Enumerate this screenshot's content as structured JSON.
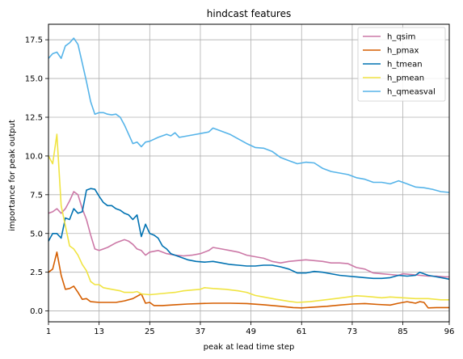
{
  "chart_data": {
    "type": "line",
    "title": "hindcast features",
    "xlabel": "peak at lead time step",
    "ylabel": "importance for peak output",
    "xlim": [
      1,
      96
    ],
    "ylim": [
      -0.7,
      18.5
    ],
    "xticks": [
      1,
      13,
      25,
      37,
      49,
      61,
      73,
      85,
      96
    ],
    "yticks": [
      0.0,
      2.5,
      5.0,
      7.5,
      10.0,
      12.5,
      15.0,
      17.5
    ],
    "ytick_labels": [
      "0.0",
      "2.5",
      "5.0",
      "7.5",
      "10.0",
      "12.5",
      "15.0",
      "17.5"
    ],
    "grid": true,
    "legend_position": "top-right",
    "series": [
      {
        "name": "h_qsim",
        "color": "#cc79a7",
        "points": [
          [
            1,
            6.3
          ],
          [
            2,
            6.4
          ],
          [
            3,
            6.6
          ],
          [
            4,
            6.3
          ],
          [
            5,
            6.6
          ],
          [
            6,
            7.1
          ],
          [
            7,
            7.7
          ],
          [
            8,
            7.5
          ],
          [
            9,
            6.6
          ],
          [
            10,
            5.9
          ],
          [
            11,
            4.9
          ],
          [
            12,
            4.0
          ],
          [
            13,
            3.9
          ],
          [
            15,
            4.1
          ],
          [
            17,
            4.4
          ],
          [
            19,
            4.6
          ],
          [
            20,
            4.5
          ],
          [
            21,
            4.3
          ],
          [
            22,
            4.0
          ],
          [
            23,
            3.9
          ],
          [
            24,
            3.6
          ],
          [
            25,
            3.8
          ],
          [
            27,
            3.9
          ],
          [
            29,
            3.7
          ],
          [
            31,
            3.6
          ],
          [
            33,
            3.55
          ],
          [
            35,
            3.6
          ],
          [
            37,
            3.7
          ],
          [
            39,
            3.9
          ],
          [
            40,
            4.1
          ],
          [
            42,
            4.0
          ],
          [
            44,
            3.9
          ],
          [
            46,
            3.8
          ],
          [
            48,
            3.6
          ],
          [
            50,
            3.5
          ],
          [
            52,
            3.4
          ],
          [
            54,
            3.2
          ],
          [
            56,
            3.1
          ],
          [
            58,
            3.2
          ],
          [
            60,
            3.25
          ],
          [
            62,
            3.3
          ],
          [
            64,
            3.25
          ],
          [
            66,
            3.2
          ],
          [
            68,
            3.1
          ],
          [
            70,
            3.1
          ],
          [
            72,
            3.05
          ],
          [
            74,
            2.8
          ],
          [
            76,
            2.7
          ],
          [
            78,
            2.45
          ],
          [
            80,
            2.4
          ],
          [
            82,
            2.35
          ],
          [
            84,
            2.3
          ],
          [
            85,
            2.4
          ],
          [
            87,
            2.35
          ],
          [
            89,
            2.3
          ],
          [
            91,
            2.25
          ],
          [
            93,
            2.25
          ],
          [
            95,
            2.2
          ],
          [
            96,
            2.2
          ]
        ]
      },
      {
        "name": "h_pmax",
        "color": "#d55e00",
        "points": [
          [
            1,
            2.5
          ],
          [
            2,
            2.7
          ],
          [
            3,
            3.8
          ],
          [
            4,
            2.3
          ],
          [
            5,
            1.4
          ],
          [
            6,
            1.45
          ],
          [
            7,
            1.6
          ],
          [
            8,
            1.2
          ],
          [
            9,
            0.75
          ],
          [
            10,
            0.8
          ],
          [
            11,
            0.6
          ],
          [
            13,
            0.55
          ],
          [
            15,
            0.55
          ],
          [
            17,
            0.55
          ],
          [
            19,
            0.65
          ],
          [
            21,
            0.8
          ],
          [
            22,
            0.95
          ],
          [
            23,
            1.1
          ],
          [
            24,
            0.5
          ],
          [
            25,
            0.55
          ],
          [
            26,
            0.35
          ],
          [
            28,
            0.35
          ],
          [
            31,
            0.4
          ],
          [
            34,
            0.45
          ],
          [
            37,
            0.48
          ],
          [
            40,
            0.5
          ],
          [
            44,
            0.5
          ],
          [
            48,
            0.48
          ],
          [
            52,
            0.4
          ],
          [
            56,
            0.3
          ],
          [
            59,
            0.22
          ],
          [
            61,
            0.2
          ],
          [
            64,
            0.25
          ],
          [
            67,
            0.3
          ],
          [
            70,
            0.38
          ],
          [
            73,
            0.45
          ],
          [
            76,
            0.48
          ],
          [
            79,
            0.42
          ],
          [
            82,
            0.38
          ],
          [
            84,
            0.5
          ],
          [
            86,
            0.6
          ],
          [
            88,
            0.5
          ],
          [
            89,
            0.6
          ],
          [
            90,
            0.55
          ],
          [
            91,
            0.2
          ],
          [
            93,
            0.22
          ],
          [
            96,
            0.22
          ]
        ]
      },
      {
        "name": "h_tmean",
        "color": "#0072b2",
        "points": [
          [
            1,
            4.5
          ],
          [
            2,
            5.0
          ],
          [
            3,
            5.0
          ],
          [
            4,
            4.7
          ],
          [
            5,
            6.0
          ],
          [
            6,
            5.9
          ],
          [
            7,
            6.6
          ],
          [
            8,
            6.3
          ],
          [
            9,
            6.4
          ],
          [
            10,
            7.8
          ],
          [
            11,
            7.9
          ],
          [
            12,
            7.85
          ],
          [
            13,
            7.4
          ],
          [
            14,
            7.0
          ],
          [
            15,
            6.8
          ],
          [
            16,
            6.8
          ],
          [
            17,
            6.6
          ],
          [
            18,
            6.5
          ],
          [
            19,
            6.3
          ],
          [
            20,
            6.2
          ],
          [
            21,
            5.9
          ],
          [
            22,
            6.2
          ],
          [
            23,
            4.8
          ],
          [
            24,
            5.6
          ],
          [
            25,
            5.0
          ],
          [
            26,
            4.9
          ],
          [
            27,
            4.7
          ],
          [
            28,
            4.2
          ],
          [
            29,
            4.0
          ],
          [
            30,
            3.7
          ],
          [
            32,
            3.5
          ],
          [
            34,
            3.3
          ],
          [
            36,
            3.2
          ],
          [
            38,
            3.15
          ],
          [
            40,
            3.2
          ],
          [
            42,
            3.1
          ],
          [
            44,
            3.0
          ],
          [
            46,
            2.95
          ],
          [
            48,
            2.9
          ],
          [
            50,
            2.9
          ],
          [
            52,
            2.95
          ],
          [
            54,
            2.95
          ],
          [
            56,
            2.85
          ],
          [
            58,
            2.7
          ],
          [
            60,
            2.45
          ],
          [
            62,
            2.45
          ],
          [
            64,
            2.55
          ],
          [
            66,
            2.5
          ],
          [
            68,
            2.4
          ],
          [
            70,
            2.3
          ],
          [
            72,
            2.25
          ],
          [
            74,
            2.2
          ],
          [
            76,
            2.15
          ],
          [
            78,
            2.1
          ],
          [
            80,
            2.1
          ],
          [
            82,
            2.15
          ],
          [
            84,
            2.3
          ],
          [
            86,
            2.25
          ],
          [
            88,
            2.3
          ],
          [
            89,
            2.5
          ],
          [
            91,
            2.3
          ],
          [
            93,
            2.2
          ],
          [
            95,
            2.1
          ],
          [
            96,
            2.05
          ]
        ]
      },
      {
        "name": "h_pmean",
        "color": "#f0e442",
        "points": [
          [
            1,
            10.0
          ],
          [
            2,
            9.5
          ],
          [
            3,
            11.4
          ],
          [
            4,
            6.8
          ],
          [
            5,
            5.5
          ],
          [
            6,
            4.2
          ],
          [
            7,
            4.0
          ],
          [
            8,
            3.6
          ],
          [
            9,
            3.0
          ],
          [
            10,
            2.6
          ],
          [
            11,
            1.9
          ],
          [
            12,
            1.7
          ],
          [
            13,
            1.7
          ],
          [
            14,
            1.5
          ],
          [
            16,
            1.4
          ],
          [
            18,
            1.3
          ],
          [
            19,
            1.2
          ],
          [
            21,
            1.2
          ],
          [
            22,
            1.25
          ],
          [
            23,
            1.1
          ],
          [
            25,
            1.05
          ],
          [
            27,
            1.1
          ],
          [
            29,
            1.15
          ],
          [
            31,
            1.2
          ],
          [
            33,
            1.3
          ],
          [
            35,
            1.35
          ],
          [
            37,
            1.4
          ],
          [
            38,
            1.5
          ],
          [
            40,
            1.45
          ],
          [
            43,
            1.4
          ],
          [
            46,
            1.3
          ],
          [
            48,
            1.2
          ],
          [
            50,
            1.0
          ],
          [
            52,
            0.9
          ],
          [
            55,
            0.75
          ],
          [
            58,
            0.62
          ],
          [
            60,
            0.55
          ],
          [
            63,
            0.6
          ],
          [
            66,
            0.7
          ],
          [
            69,
            0.8
          ],
          [
            72,
            0.9
          ],
          [
            74,
            0.98
          ],
          [
            76,
            0.95
          ],
          [
            78,
            0.9
          ],
          [
            80,
            0.85
          ],
          [
            82,
            0.9
          ],
          [
            85,
            0.85
          ],
          [
            88,
            0.8
          ],
          [
            91,
            0.8
          ],
          [
            94,
            0.72
          ],
          [
            96,
            0.72
          ]
        ]
      },
      {
        "name": "h_qmeasval",
        "color": "#56b4e9",
        "points": [
          [
            1,
            16.3
          ],
          [
            2,
            16.6
          ],
          [
            3,
            16.7
          ],
          [
            4,
            16.3
          ],
          [
            5,
            17.1
          ],
          [
            6,
            17.3
          ],
          [
            7,
            17.6
          ],
          [
            8,
            17.2
          ],
          [
            9,
            16.0
          ],
          [
            10,
            14.8
          ],
          [
            11,
            13.5
          ],
          [
            12,
            12.7
          ],
          [
            13,
            12.8
          ],
          [
            14,
            12.8
          ],
          [
            15,
            12.7
          ],
          [
            16,
            12.65
          ],
          [
            17,
            12.7
          ],
          [
            18,
            12.5
          ],
          [
            19,
            12.0
          ],
          [
            20,
            11.4
          ],
          [
            21,
            10.8
          ],
          [
            22,
            10.9
          ],
          [
            23,
            10.6
          ],
          [
            24,
            10.9
          ],
          [
            25,
            10.95
          ],
          [
            27,
            11.2
          ],
          [
            29,
            11.4
          ],
          [
            30,
            11.3
          ],
          [
            31,
            11.5
          ],
          [
            32,
            11.2
          ],
          [
            34,
            11.3
          ],
          [
            36,
            11.4
          ],
          [
            38,
            11.5
          ],
          [
            39,
            11.55
          ],
          [
            40,
            11.8
          ],
          [
            42,
            11.6
          ],
          [
            44,
            11.4
          ],
          [
            46,
            11.1
          ],
          [
            48,
            10.8
          ],
          [
            50,
            10.55
          ],
          [
            52,
            10.5
          ],
          [
            54,
            10.3
          ],
          [
            56,
            9.9
          ],
          [
            58,
            9.7
          ],
          [
            59,
            9.6
          ],
          [
            60,
            9.5
          ],
          [
            62,
            9.6
          ],
          [
            64,
            9.55
          ],
          [
            66,
            9.2
          ],
          [
            68,
            9.0
          ],
          [
            70,
            8.9
          ],
          [
            72,
            8.8
          ],
          [
            74,
            8.6
          ],
          [
            76,
            8.5
          ],
          [
            78,
            8.3
          ],
          [
            80,
            8.3
          ],
          [
            82,
            8.2
          ],
          [
            84,
            8.4
          ],
          [
            86,
            8.2
          ],
          [
            88,
            8.0
          ],
          [
            90,
            7.95
          ],
          [
            92,
            7.85
          ],
          [
            94,
            7.7
          ],
          [
            96,
            7.65
          ]
        ]
      }
    ]
  }
}
